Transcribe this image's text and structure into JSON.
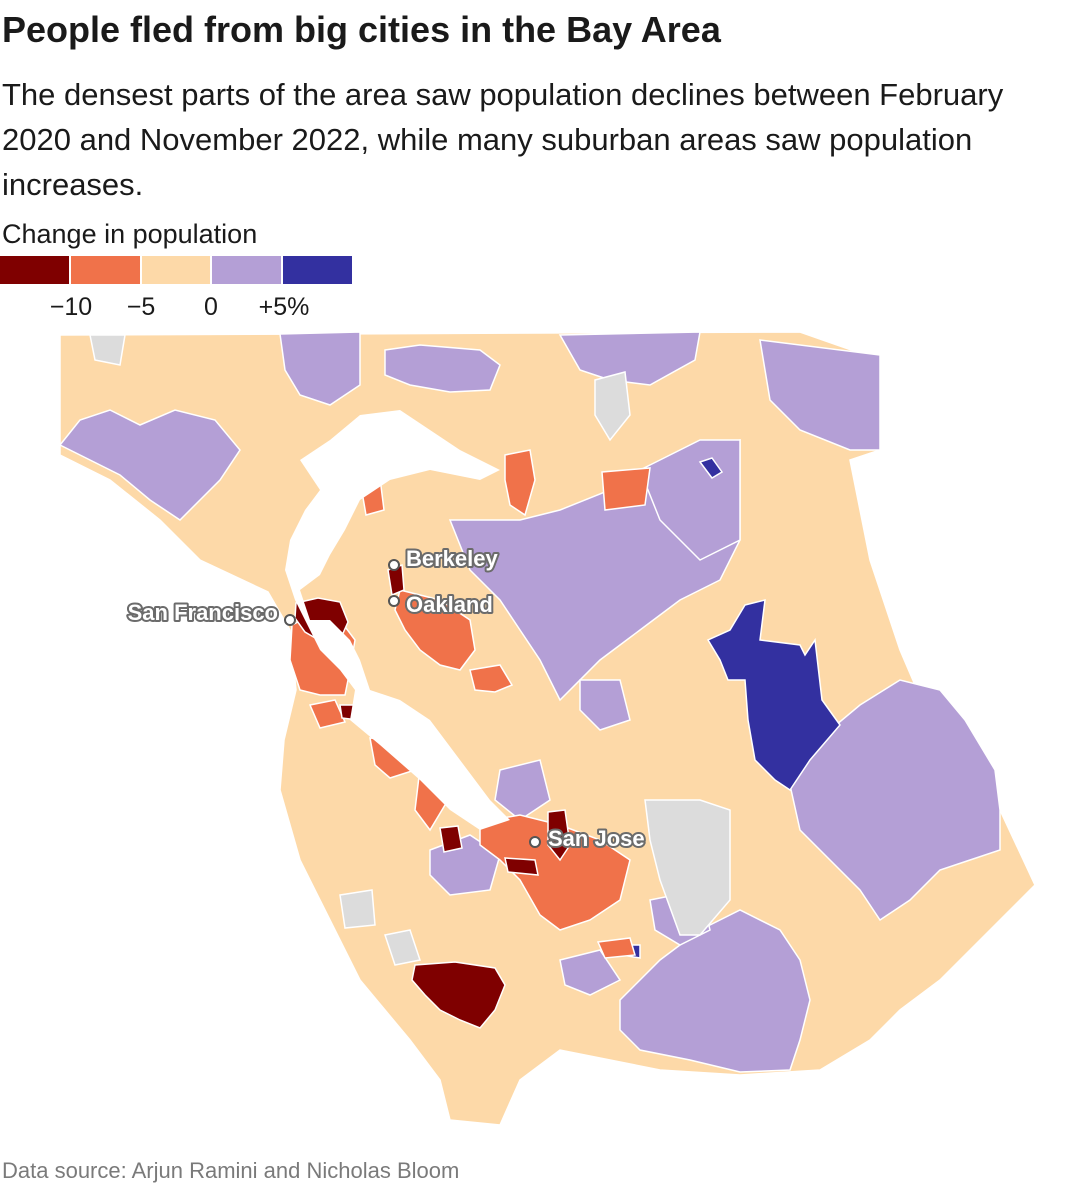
{
  "header": {
    "title": "People fled from big cities in the Bay Area",
    "subtitle": "The densest parts of the area saw population declines between February 2020 and November 2022, while many suburban areas saw population increases."
  },
  "legend": {
    "title": "Change in population",
    "bins": [
      {
        "color": "#7f0000"
      },
      {
        "color": "#f0724a"
      },
      {
        "color": "#fdd9a8"
      },
      {
        "color": "#b49fd6"
      },
      {
        "color": "#3330a0"
      }
    ],
    "ticks": [
      "−10",
      "−5",
      "0",
      "+5%"
    ]
  },
  "map": {
    "no_data_color": "#dcdcdc",
    "water_color": "#ffffff",
    "cities": [
      {
        "name": "Berkeley"
      },
      {
        "name": "Oakland"
      },
      {
        "name": "San Francisco"
      },
      {
        "name": "San Jose"
      }
    ]
  },
  "footer": {
    "source": "Data source: Arjun Ramini and Nicholas Bloom"
  }
}
